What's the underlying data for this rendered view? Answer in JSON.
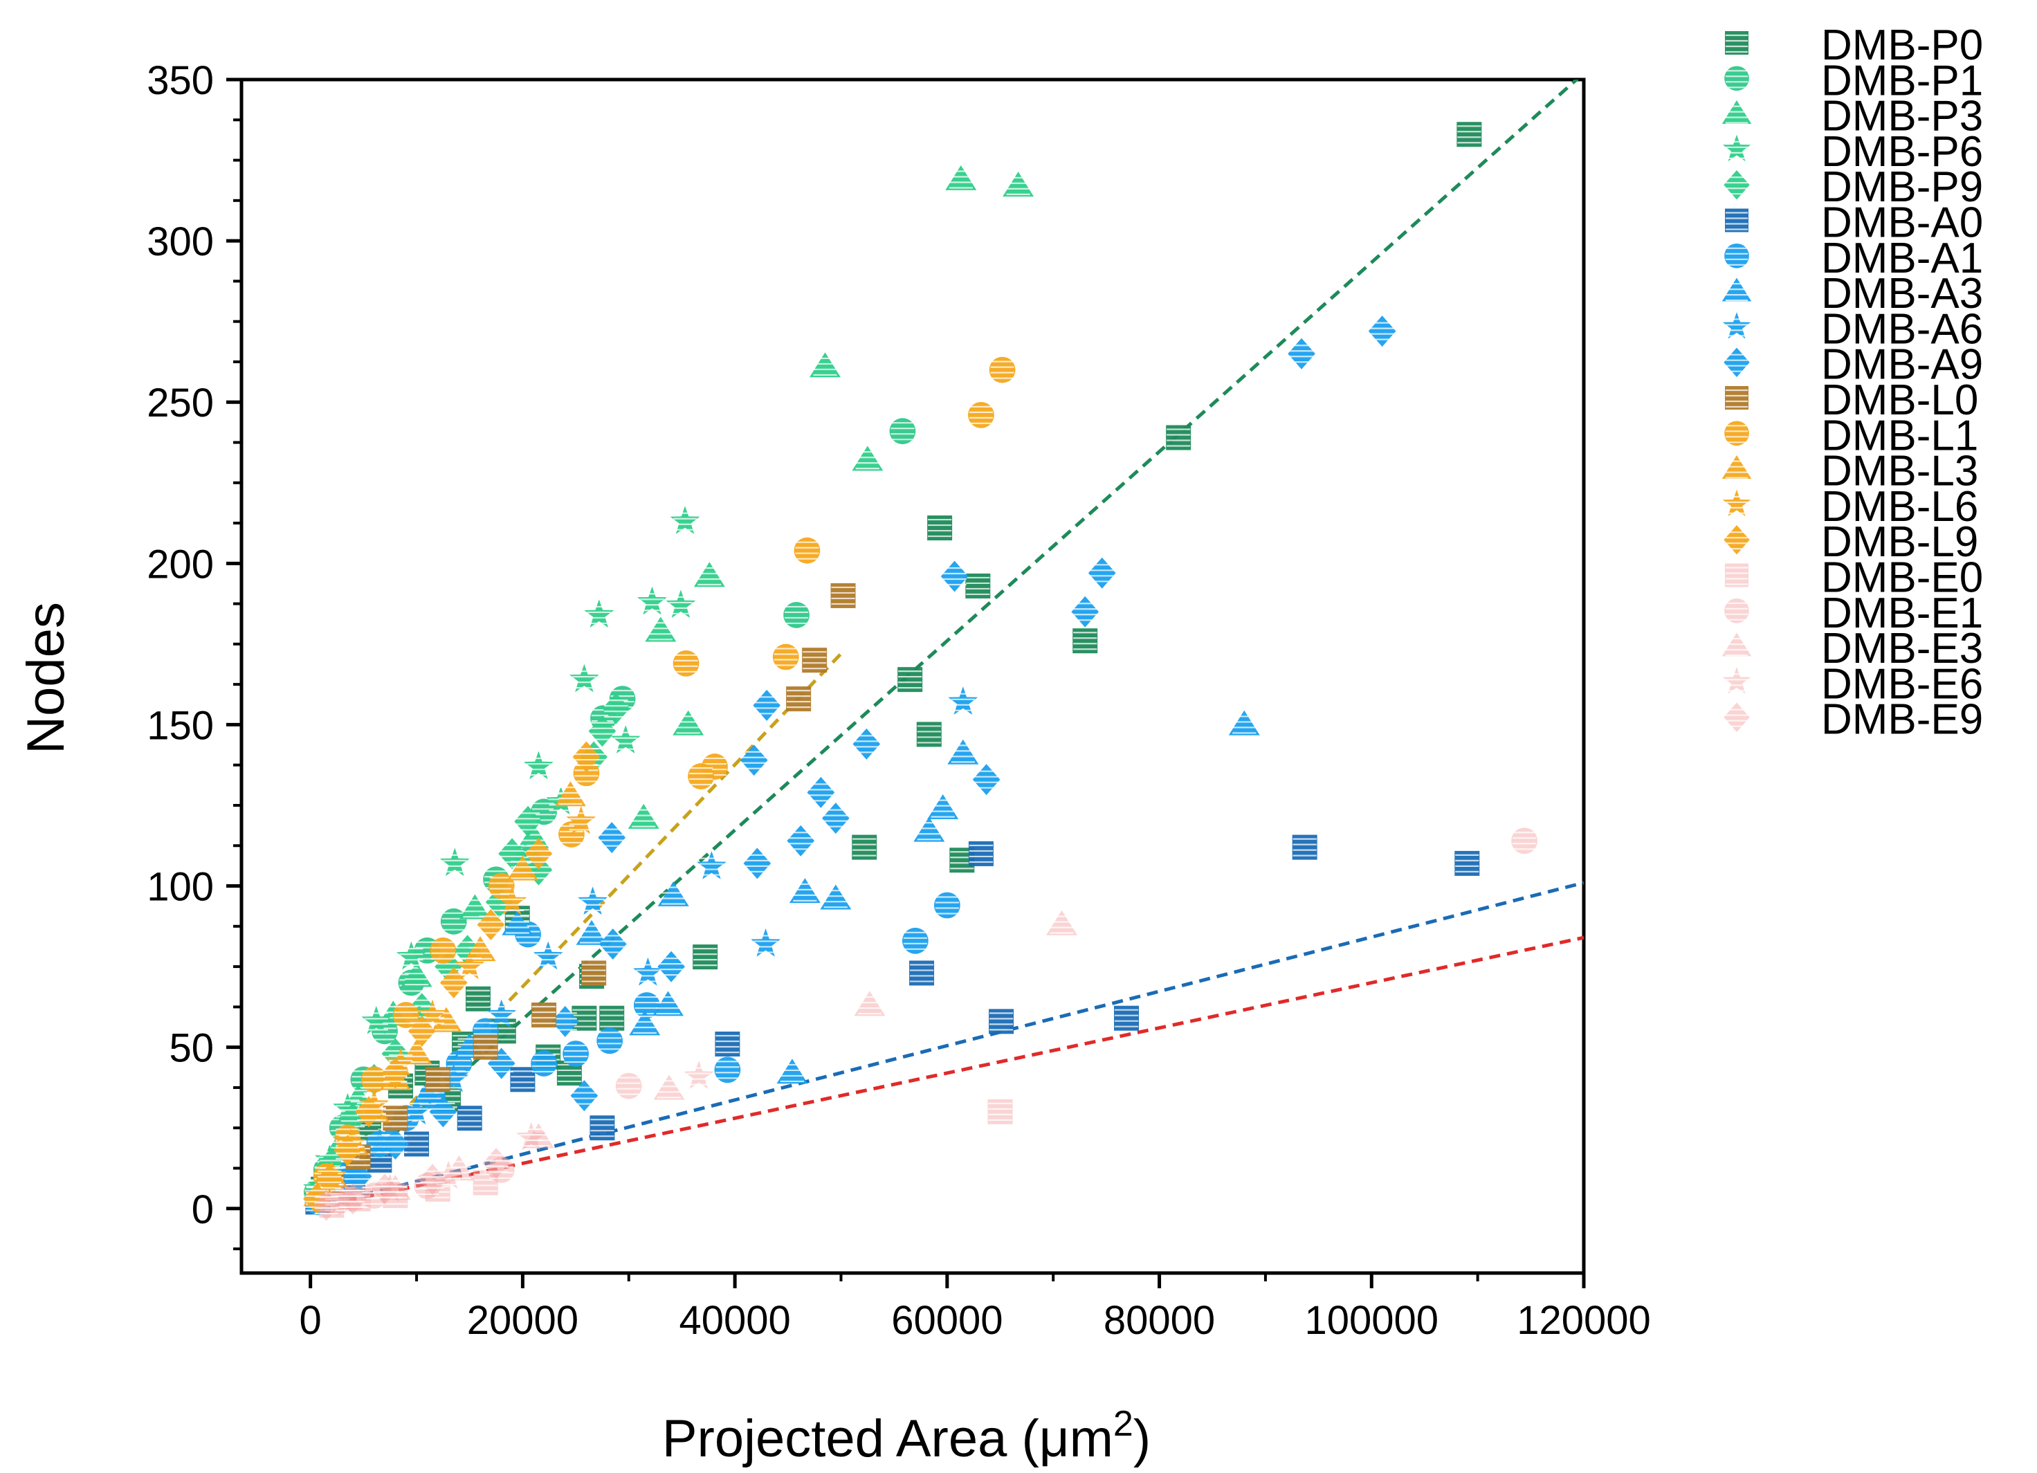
{
  "chart_data": {
    "type": "scatter",
    "xlabel": "Projected Area (μm",
    "xlabel_sup": "2",
    "xlabel_close": ")",
    "ylabel": "Nodes",
    "xlim": [
      -6500,
      120000
    ],
    "ylim": [
      -20,
      350
    ],
    "xticks": [
      0,
      20000,
      40000,
      60000,
      80000,
      100000,
      120000
    ],
    "xtick_labels": [
      "0",
      "20000",
      "40000",
      "60000",
      "80000",
      "100000",
      "120000"
    ],
    "yticks": [
      0,
      50,
      100,
      150,
      200,
      250,
      300,
      350
    ],
    "ytick_labels": [
      "0",
      "50",
      "100",
      "150",
      "200",
      "250",
      "300",
      "350"
    ],
    "legend_position": "right, outside plot",
    "series": [
      {
        "name": "DMB-P0",
        "marker": "square",
        "color": "#1e8a5a",
        "points": [
          [
            109200,
            333
          ],
          [
            81800,
            239
          ],
          [
            59300,
            211
          ],
          [
            62900,
            193
          ],
          [
            73000,
            176
          ],
          [
            56500,
            164
          ],
          [
            58300,
            147
          ],
          [
            61400,
            108
          ],
          [
            52200,
            112
          ],
          [
            37200,
            78
          ],
          [
            19500,
            90
          ],
          [
            26500,
            72
          ],
          [
            25800,
            59
          ],
          [
            28400,
            59
          ],
          [
            22400,
            47
          ],
          [
            24400,
            42
          ],
          [
            15800,
            65
          ],
          [
            11000,
            42
          ],
          [
            18200,
            55
          ],
          [
            13000,
            34
          ],
          [
            8500,
            38
          ],
          [
            14500,
            51
          ],
          [
            5500,
            25
          ],
          [
            2500,
            12
          ],
          [
            1200,
            6
          ]
        ]
      },
      {
        "name": "DMB-P1",
        "marker": "circle",
        "color": "#2fc88a",
        "points": [
          [
            55800,
            241
          ],
          [
            45800,
            184
          ],
          [
            29400,
            158
          ],
          [
            27600,
            152
          ],
          [
            22000,
            123
          ],
          [
            20500,
            108
          ],
          [
            17500,
            102
          ],
          [
            13500,
            89
          ],
          [
            11000,
            80
          ],
          [
            9500,
            70
          ],
          [
            7000,
            55
          ],
          [
            5000,
            40
          ],
          [
            3000,
            25
          ],
          [
            1500,
            12
          ],
          [
            600,
            5
          ]
        ]
      },
      {
        "name": "DMB-P3",
        "marker": "triangle",
        "color": "#2ecf8a",
        "points": [
          [
            61300,
            319
          ],
          [
            66700,
            317
          ],
          [
            48500,
            261
          ],
          [
            52500,
            232
          ],
          [
            37600,
            196
          ],
          [
            33000,
            179
          ],
          [
            35600,
            150
          ],
          [
            31400,
            121
          ],
          [
            21000,
            115
          ],
          [
            15500,
            93
          ],
          [
            10000,
            72
          ],
          [
            7800,
            60
          ],
          [
            4500,
            34
          ],
          [
            2500,
            18
          ],
          [
            900,
            8
          ]
        ]
      },
      {
        "name": "DMB-P6",
        "marker": "star",
        "color": "#2fcf8a",
        "points": [
          [
            35300,
            213
          ],
          [
            27200,
            184
          ],
          [
            32200,
            188
          ],
          [
            34900,
            187
          ],
          [
            25800,
            164
          ],
          [
            29700,
            145
          ],
          [
            21500,
            137
          ],
          [
            23600,
            126
          ],
          [
            13600,
            107
          ],
          [
            9500,
            78
          ],
          [
            6200,
            58
          ],
          [
            3500,
            31
          ],
          [
            1800,
            15
          ],
          [
            700,
            6
          ]
        ]
      },
      {
        "name": "DMB-P9",
        "marker": "diamond",
        "color": "#2fcf8a",
        "points": [
          [
            28800,
            155
          ],
          [
            27500,
            148
          ],
          [
            26700,
            140
          ],
          [
            20500,
            120
          ],
          [
            19000,
            110
          ],
          [
            21500,
            105
          ],
          [
            17800,
            95
          ],
          [
            14800,
            80
          ],
          [
            13000,
            75
          ],
          [
            10500,
            62
          ],
          [
            8000,
            48
          ],
          [
            6000,
            40
          ],
          [
            4000,
            28
          ],
          [
            2000,
            14
          ],
          [
            800,
            6
          ]
        ]
      },
      {
        "name": "DMB-A0",
        "marker": "square",
        "color": "#1a6bb5",
        "points": [
          [
            109000,
            107
          ],
          [
            93700,
            112
          ],
          [
            76900,
            59
          ],
          [
            65100,
            58
          ],
          [
            63200,
            110
          ],
          [
            57600,
            73
          ],
          [
            39300,
            51
          ],
          [
            27500,
            25
          ],
          [
            20000,
            40
          ],
          [
            15000,
            28
          ],
          [
            10000,
            20
          ],
          [
            6500,
            15
          ],
          [
            4000,
            9
          ],
          [
            2000,
            5
          ],
          [
            700,
            2
          ]
        ]
      },
      {
        "name": "DMB-A1",
        "marker": "circle",
        "color": "#1aa0ee",
        "points": [
          [
            57000,
            83
          ],
          [
            60000,
            94
          ],
          [
            39300,
            43
          ],
          [
            31700,
            63
          ],
          [
            28200,
            52
          ],
          [
            25000,
            48
          ],
          [
            22000,
            45
          ],
          [
            20500,
            85
          ],
          [
            16500,
            55
          ],
          [
            14000,
            45
          ],
          [
            11500,
            35
          ],
          [
            9000,
            28
          ],
          [
            6500,
            20
          ],
          [
            4000,
            12
          ],
          [
            2000,
            6
          ],
          [
            700,
            2
          ]
        ]
      },
      {
        "name": "DMB-A3",
        "marker": "triangle",
        "color": "#1aa0ee",
        "points": [
          [
            88000,
            150
          ],
          [
            61500,
            141
          ],
          [
            59600,
            124
          ],
          [
            58300,
            117
          ],
          [
            46600,
            98
          ],
          [
            49500,
            96
          ],
          [
            34200,
            97
          ],
          [
            33700,
            63
          ],
          [
            31500,
            57
          ],
          [
            45400,
            42
          ],
          [
            26500,
            85
          ],
          [
            19500,
            88
          ],
          [
            15000,
            50
          ],
          [
            11000,
            35
          ],
          [
            7500,
            22
          ],
          [
            4000,
            12
          ],
          [
            1800,
            5
          ]
        ]
      },
      {
        "name": "DMB-A6",
        "marker": "star",
        "color": "#1aa0ee",
        "points": [
          [
            61500,
            157
          ],
          [
            37800,
            106
          ],
          [
            42900,
            82
          ],
          [
            31800,
            73
          ],
          [
            26600,
            95
          ],
          [
            22400,
            78
          ],
          [
            18000,
            60
          ],
          [
            13500,
            40
          ],
          [
            10000,
            30
          ],
          [
            6500,
            20
          ],
          [
            3500,
            10
          ],
          [
            1500,
            4
          ]
        ]
      },
      {
        "name": "DMB-A9",
        "marker": "diamond",
        "color": "#1aa0ee",
        "points": [
          [
            101000,
            272
          ],
          [
            93400,
            265
          ],
          [
            74600,
            197
          ],
          [
            73000,
            185
          ],
          [
            60700,
            196
          ],
          [
            63700,
            133
          ],
          [
            52400,
            144
          ],
          [
            48100,
            129
          ],
          [
            49500,
            121
          ],
          [
            43000,
            156
          ],
          [
            41800,
            139
          ],
          [
            46200,
            114
          ],
          [
            42100,
            107
          ],
          [
            28400,
            115
          ],
          [
            34000,
            75
          ],
          [
            28500,
            82
          ],
          [
            25800,
            35
          ],
          [
            24000,
            58
          ],
          [
            18000,
            45
          ],
          [
            12500,
            30
          ],
          [
            8000,
            20
          ],
          [
            4500,
            10
          ],
          [
            1800,
            4
          ]
        ]
      },
      {
        "name": "DMB-L0",
        "marker": "square",
        "color": "#b07a2a",
        "points": [
          [
            50200,
            190
          ],
          [
            47500,
            170
          ],
          [
            46000,
            158
          ],
          [
            26700,
            73
          ],
          [
            22000,
            60
          ],
          [
            16500,
            50
          ],
          [
            12000,
            40
          ],
          [
            8000,
            28
          ],
          [
            4500,
            16
          ],
          [
            2000,
            7
          ]
        ]
      },
      {
        "name": "DMB-L1",
        "marker": "circle",
        "color": "#f5a81c",
        "points": [
          [
            65200,
            260
          ],
          [
            63200,
            246
          ],
          [
            46800,
            204
          ],
          [
            44800,
            171
          ],
          [
            35400,
            169
          ],
          [
            38100,
            137
          ],
          [
            36800,
            134
          ],
          [
            26000,
            135
          ],
          [
            24600,
            116
          ],
          [
            18000,
            100
          ],
          [
            12500,
            80
          ],
          [
            9000,
            60
          ],
          [
            6000,
            40
          ],
          [
            3500,
            22
          ],
          [
            1500,
            10
          ]
        ]
      },
      {
        "name": "DMB-L3",
        "marker": "triangle",
        "color": "#f5a81c",
        "points": [
          [
            24500,
            128
          ],
          [
            20000,
            105
          ],
          [
            16000,
            80
          ],
          [
            12800,
            58
          ],
          [
            10000,
            48
          ],
          [
            8000,
            40
          ],
          [
            6000,
            30
          ],
          [
            4000,
            20
          ],
          [
            2000,
            10
          ],
          [
            800,
            4
          ]
        ]
      },
      {
        "name": "DMB-L6",
        "marker": "star",
        "color": "#f5a81c",
        "points": [
          [
            25500,
            120
          ],
          [
            19000,
            95
          ],
          [
            15000,
            75
          ],
          [
            11500,
            60
          ],
          [
            8500,
            45
          ],
          [
            6000,
            32
          ],
          [
            3800,
            20
          ],
          [
            2000,
            10
          ],
          [
            700,
            4
          ]
        ]
      },
      {
        "name": "DMB-L9",
        "marker": "diamond",
        "color": "#f5a81c",
        "points": [
          [
            26000,
            140
          ],
          [
            21500,
            110
          ],
          [
            17000,
            88
          ],
          [
            13500,
            70
          ],
          [
            10500,
            55
          ],
          [
            8000,
            42
          ],
          [
            5500,
            30
          ],
          [
            3500,
            18
          ],
          [
            1800,
            9
          ],
          [
            600,
            3
          ]
        ]
      },
      {
        "name": "DMB-E0",
        "marker": "square",
        "color": "#f4a0a0",
        "points": [
          [
            65000,
            30
          ],
          [
            16500,
            8
          ],
          [
            12000,
            6
          ],
          [
            8000,
            4
          ],
          [
            4500,
            3
          ],
          [
            2000,
            1
          ]
        ]
      },
      {
        "name": "DMB-E1",
        "marker": "circle",
        "color": "#f4a0a0",
        "points": [
          [
            114400,
            114
          ],
          [
            30000,
            38
          ],
          [
            18000,
            12
          ],
          [
            11000,
            7
          ],
          [
            6000,
            4
          ],
          [
            2500,
            2
          ]
        ]
      },
      {
        "name": "DMB-E3",
        "marker": "triangle",
        "color": "#f4a0a0",
        "points": [
          [
            70800,
            88
          ],
          [
            52700,
            63
          ],
          [
            33800,
            37
          ],
          [
            21500,
            22
          ],
          [
            14000,
            12
          ],
          [
            8000,
            6
          ],
          [
            3500,
            3
          ]
        ]
      },
      {
        "name": "DMB-E6",
        "marker": "star",
        "color": "#f4a0a0",
        "points": [
          [
            36600,
            41
          ],
          [
            20800,
            22
          ],
          [
            13000,
            10
          ],
          [
            7500,
            6
          ],
          [
            3000,
            3
          ]
        ]
      },
      {
        "name": "DMB-E9",
        "marker": "diamond",
        "color": "#f4a0a0",
        "points": [
          [
            17500,
            14
          ],
          [
            11500,
            9
          ],
          [
            7000,
            6
          ],
          [
            4000,
            3
          ],
          [
            1500,
            1
          ]
        ]
      }
    ],
    "fit_lines": [
      {
        "name": "fit-p",
        "color": "#1e8a5a",
        "from": [
          0,
          0
        ],
        "to": [
          120000,
          352
        ]
      },
      {
        "name": "fit-l",
        "color": "#c8a21c",
        "from": [
          0,
          0
        ],
        "to": [
          50000,
          172
        ]
      },
      {
        "name": "fit-a",
        "color": "#1a6bb5",
        "from": [
          0,
          0
        ],
        "to": [
          120000,
          101
        ]
      },
      {
        "name": "fit-e",
        "color": "#e02a2a",
        "from": [
          0,
          0
        ],
        "to": [
          120000,
          84
        ]
      }
    ]
  }
}
